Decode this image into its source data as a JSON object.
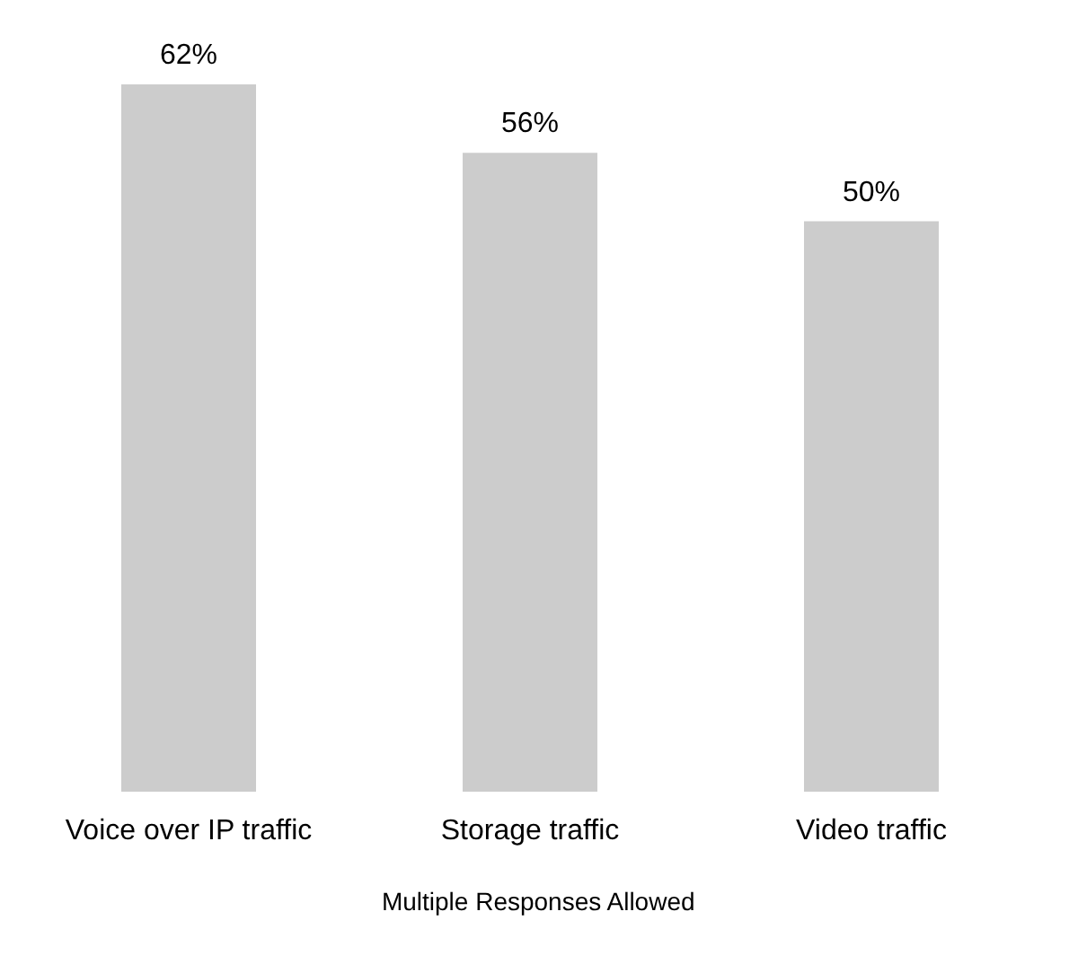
{
  "chart_data": {
    "type": "bar",
    "categories": [
      "Voice over IP traffic",
      "Storage traffic",
      "Video traffic"
    ],
    "values": [
      62,
      56,
      50
    ],
    "value_labels": [
      "62%",
      "56%",
      "50%"
    ],
    "color": "#cccccc",
    "annotations": [
      "Multiple Responses Allowed"
    ]
  }
}
